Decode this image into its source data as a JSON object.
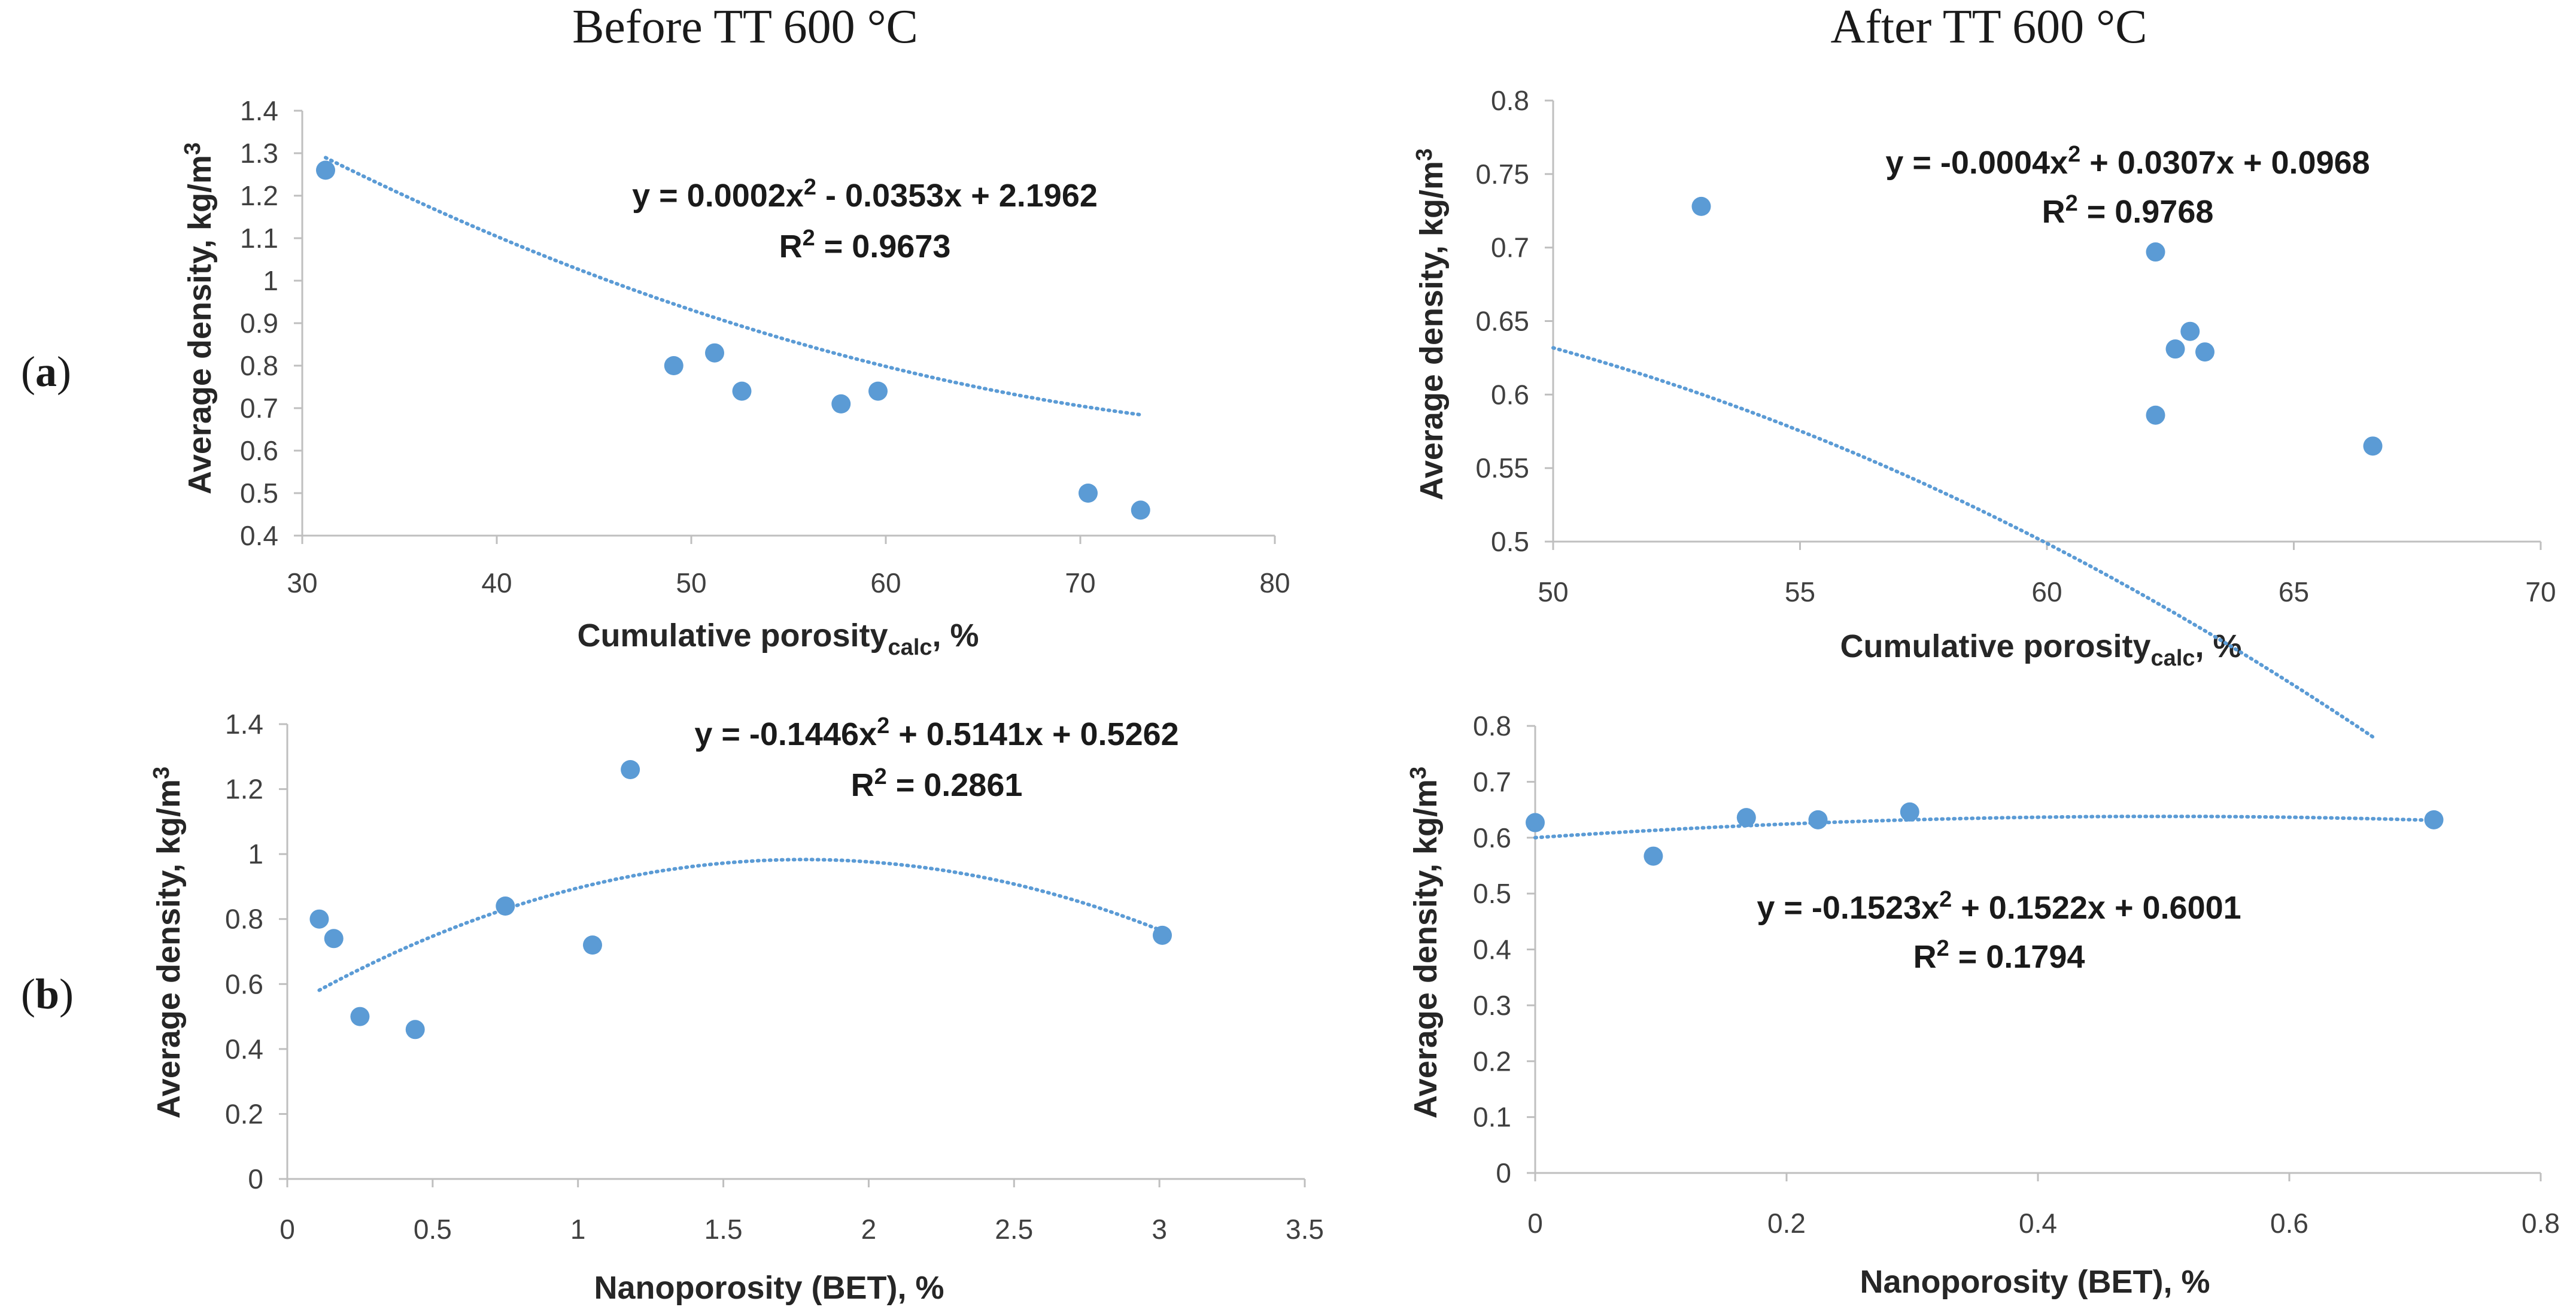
{
  "column_titles": {
    "left": "Before TT 600 °C",
    "right": "After TT 600 °C"
  },
  "row_labels": {
    "a_open": "(",
    "a": "a",
    "a_close": ")",
    "b_open": "(",
    "b": "b",
    "b_close": ")"
  },
  "colors": {
    "marker": "#5B9BD5",
    "axis": "#bfbfbf",
    "text": "#262626"
  },
  "chart_data": [
    {
      "id": "a-left",
      "type": "scatter",
      "xlabel_main": "Cumulative porosity",
      "xlabel_sub": "calc",
      "xlabel_tail": ", %",
      "ylabel_main": "Average density, kg/m",
      "ylabel_sup": "3",
      "xlim": [
        30,
        80
      ],
      "ylim": [
        0.4,
        1.4
      ],
      "xticks": [
        30,
        40,
        50,
        60,
        70,
        80
      ],
      "xtick_labels": [
        "30",
        "40",
        "50",
        "60",
        "70",
        "80"
      ],
      "yticks": [
        0.4,
        0.5,
        0.6,
        0.7,
        0.8,
        0.9,
        1.0,
        1.1,
        1.2,
        1.3,
        1.4
      ],
      "ytick_labels": [
        "0.4",
        "0.5",
        "0.6",
        "0.7",
        "0.8",
        "0.9",
        "1",
        "1.1",
        "1.2",
        "1.3",
        "1.4"
      ],
      "x": [
        31.2,
        49.1,
        51.2,
        52.6,
        57.7,
        59.6,
        70.4,
        73.1
      ],
      "y": [
        1.26,
        0.8,
        0.83,
        0.74,
        0.71,
        0.74,
        0.5,
        0.46
      ],
      "trendline": {
        "type": "poly2",
        "coefficients": [
          0.0002,
          -0.0353,
          2.1962
        ],
        "x_range": [
          31.2,
          73.1
        ]
      },
      "equation": {
        "y_eq": "y = 0.0002x",
        "sup1": "2",
        "rest": " - 0.0353x + 2.1962",
        "r2_pre": "R",
        "sup2": "2",
        "r2_post": " = 0.9673"
      }
    },
    {
      "id": "a-right",
      "type": "scatter",
      "xlabel_main": "Cumulative porosity",
      "xlabel_sub": "calc",
      "xlabel_tail": ", %",
      "ylabel_main": "Average density, kg/m",
      "ylabel_sup": "3",
      "xlim": [
        50,
        70
      ],
      "ylim": [
        0.5,
        0.8
      ],
      "xticks": [
        50,
        55,
        60,
        65,
        70
      ],
      "xtick_labels": [
        "50",
        "55",
        "60",
        "65",
        "70"
      ],
      "yticks": [
        0.5,
        0.55,
        0.6,
        0.65,
        0.7,
        0.75,
        0.8
      ],
      "ytick_labels": [
        "0.5",
        "0.55",
        "0.6",
        "0.65",
        "0.7",
        "0.75",
        "0.8"
      ],
      "x": [
        53.0,
        62.2,
        62.2,
        62.6,
        62.9,
        63.2,
        66.6
      ],
      "y": [
        0.728,
        0.697,
        0.586,
        0.631,
        0.643,
        0.629,
        0.565
      ],
      "trendline": {
        "type": "poly2",
        "coefficients": [
          -0.0004,
          0.0307,
          0.0968
        ],
        "x_range": [
          50,
          66.6
        ]
      },
      "equation": {
        "y_eq": "y = -0.0004x",
        "sup1": "2",
        "rest": " + 0.0307x + 0.0968",
        "r2_pre": "R",
        "sup2": "2",
        "r2_post": " = 0.9768"
      }
    },
    {
      "id": "b-left",
      "type": "scatter",
      "xlabel_main": "Nanoporosity (BET), %",
      "xlabel_sub": "",
      "xlabel_tail": "",
      "ylabel_main": "Average density, kg/m",
      "ylabel_sup": "3",
      "xlim": [
        0,
        3.5
      ],
      "ylim": [
        0,
        1.4
      ],
      "xticks": [
        0,
        0.5,
        1,
        1.5,
        2,
        2.5,
        3,
        3.5
      ],
      "xtick_labels": [
        "0",
        "0.5",
        "1",
        "1.5",
        "2",
        "2.5",
        "3",
        "3.5"
      ],
      "yticks": [
        0,
        0.2,
        0.4,
        0.6,
        0.8,
        1.0,
        1.2,
        1.4
      ],
      "ytick_labels": [
        "0",
        "0.2",
        "0.4",
        "0.6",
        "0.8",
        "1",
        "1.2",
        "1.4"
      ],
      "x": [
        0.11,
        0.16,
        0.25,
        0.44,
        0.75,
        1.05,
        1.18,
        3.01
      ],
      "y": [
        0.8,
        0.74,
        0.5,
        0.46,
        0.84,
        0.72,
        1.26,
        0.75
      ],
      "trendline": {
        "type": "poly2",
        "coefficients": [
          -0.1446,
          0.5141,
          0.5262
        ],
        "x_range": [
          0.11,
          3.01
        ]
      },
      "equation": {
        "y_eq": "y = -0.1446x",
        "sup1": "2",
        "rest": " + 0.5141x + 0.5262",
        "r2_pre": "R",
        "sup2": "2",
        "r2_post": " = 0.2861"
      }
    },
    {
      "id": "b-right",
      "type": "scatter",
      "xlabel_main": "Nanoporosity (BET), %",
      "xlabel_sub": "",
      "xlabel_tail": "",
      "ylabel_main": "Average density, kg/m",
      "ylabel_sup": "3",
      "xlim": [
        0,
        0.8
      ],
      "ylim": [
        0,
        0.8
      ],
      "xticks": [
        0,
        0.2,
        0.4,
        0.6,
        0.8
      ],
      "xtick_labels": [
        "0",
        "0.2",
        "0.4",
        "0.6",
        "0.8"
      ],
      "yticks": [
        0,
        0.1,
        0.2,
        0.3,
        0.4,
        0.5,
        0.6,
        0.7,
        0.8
      ],
      "ytick_labels": [
        "0",
        "0.1",
        "0.2",
        "0.3",
        "0.4",
        "0.5",
        "0.6",
        "0.7",
        "0.8"
      ],
      "x": [
        0.0,
        0.094,
        0.168,
        0.225,
        0.298,
        0.715
      ],
      "y": [
        0.627,
        0.567,
        0.636,
        0.632,
        0.646,
        0.632
      ],
      "trendline": {
        "type": "poly2",
        "coefficients": [
          -0.1523,
          0.1522,
          0.6001
        ],
        "x_range": [
          0,
          0.715
        ]
      },
      "equation": {
        "y_eq": "y = -0.1523x",
        "sup1": "2",
        "rest": " + 0.1522x + 0.6001",
        "r2_pre": "R",
        "sup2": "2",
        "r2_post": " = 0.1794"
      }
    }
  ]
}
